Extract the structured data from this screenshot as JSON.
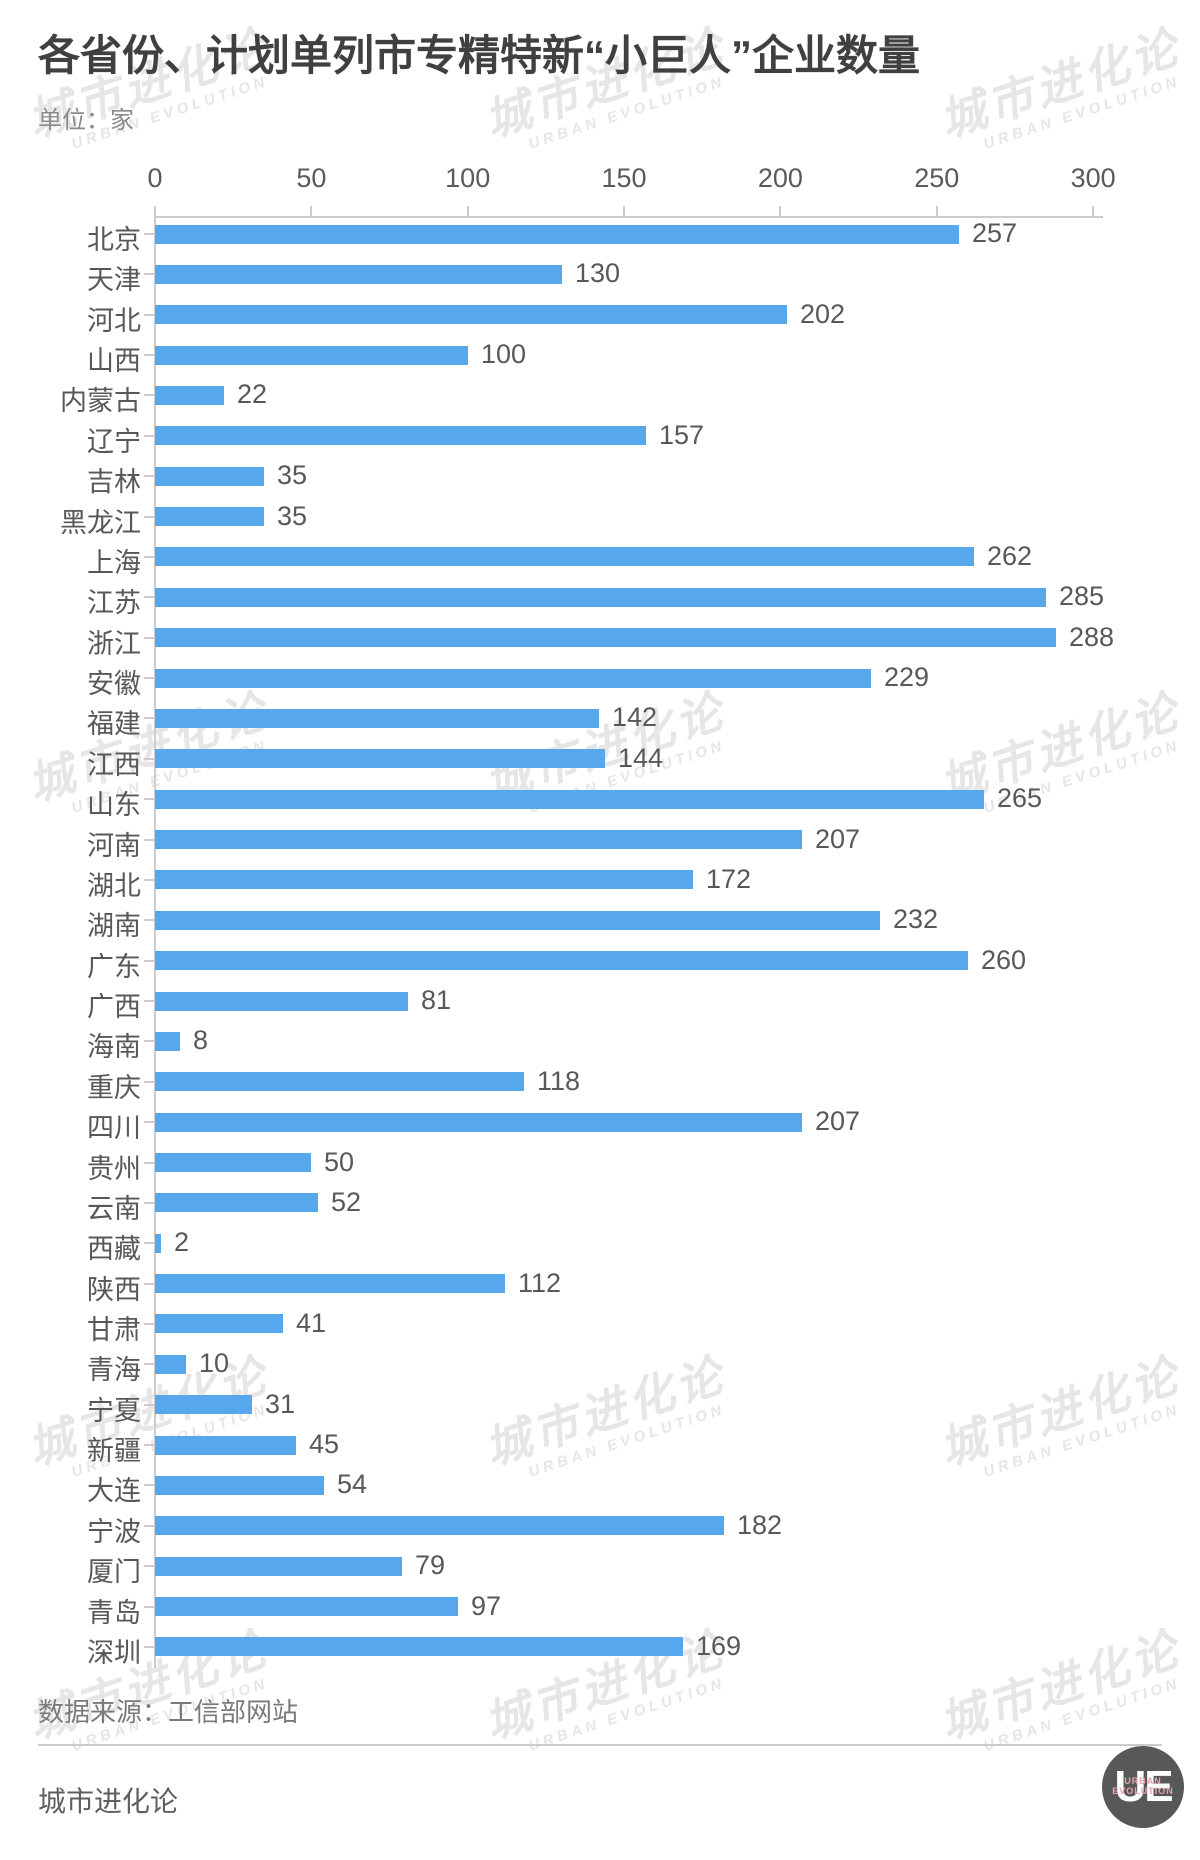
{
  "title": "各省份、计划单列市专精特新“小巨人”企业数量",
  "unit_label": "单位：家",
  "source_label": "数据来源：工信部网站",
  "footer_brand": "城市进化论",
  "logo": {
    "monogram": "UE",
    "line1": "URBAN",
    "line2": "EVOLUTION"
  },
  "watermark": {
    "cn": "城市进化论",
    "en": "URBAN EVOLUTION"
  },
  "chart_data": {
    "type": "bar",
    "orientation": "horizontal",
    "title": "各省份、计划单列市专精特新“小巨人”企业数量",
    "unit": "家",
    "xlim": [
      0,
      300
    ],
    "x_ticks": [
      0,
      50,
      100,
      150,
      200,
      250,
      300
    ],
    "grid": false,
    "bar_color": "#57a7ec",
    "categories": [
      "北京",
      "天津",
      "河北",
      "山西",
      "内蒙古",
      "辽宁",
      "吉林",
      "黑龙江",
      "上海",
      "江苏",
      "浙江",
      "安徽",
      "福建",
      "江西",
      "山东",
      "河南",
      "湖北",
      "湖南",
      "广东",
      "广西",
      "海南",
      "重庆",
      "四川",
      "贵州",
      "云南",
      "西藏",
      "陕西",
      "甘肃",
      "青海",
      "宁夏",
      "新疆",
      "大连",
      "宁波",
      "厦门",
      "青岛",
      "深圳"
    ],
    "values": [
      257,
      130,
      202,
      100,
      22,
      157,
      35,
      35,
      262,
      285,
      288,
      229,
      142,
      144,
      265,
      207,
      172,
      232,
      260,
      81,
      8,
      118,
      207,
      50,
      52,
      2,
      112,
      41,
      10,
      31,
      45,
      54,
      182,
      79,
      97,
      169
    ]
  }
}
